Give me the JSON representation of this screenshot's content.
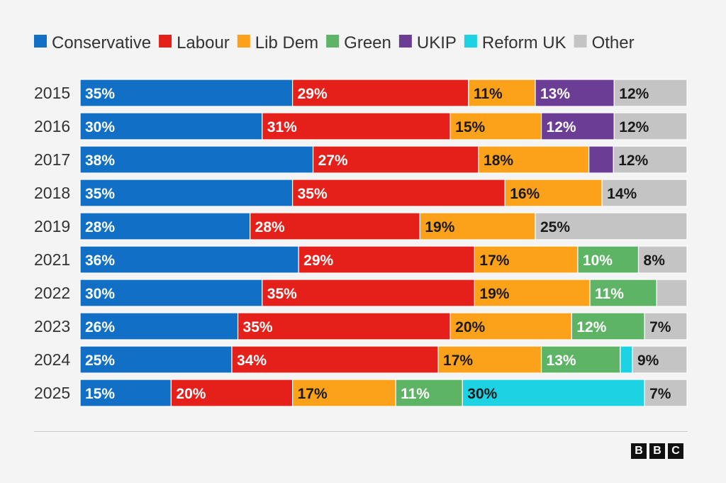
{
  "chart_data": {
    "type": "bar",
    "orientation": "horizontal",
    "stacked": true,
    "unit": "%",
    "categories": [
      "2015",
      "2016",
      "2017",
      "2018",
      "2019",
      "2021",
      "2022",
      "2023",
      "2024",
      "2025"
    ],
    "legend_position": "top-left",
    "series": [
      {
        "name": "Conservative",
        "color": "#1170c5",
        "values": [
          35,
          30,
          38,
          35,
          28,
          36,
          30,
          26,
          25,
          15
        ],
        "labels": [
          "35%",
          "30%",
          "38%",
          "35%",
          "28%",
          "36%",
          "30%",
          "26%",
          "25%",
          "15%"
        ],
        "label_color": "#ffffff"
      },
      {
        "name": "Labour",
        "color": "#e5201a",
        "values": [
          29,
          31,
          27,
          35,
          28,
          29,
          35,
          35,
          34,
          20
        ],
        "labels": [
          "29%",
          "31%",
          "27%",
          "35%",
          "28%",
          "29%",
          "35%",
          "35%",
          "34%",
          "20%"
        ],
        "label_color": "#ffffff"
      },
      {
        "name": "Lib Dem",
        "color": "#fca11a",
        "values": [
          11,
          15,
          18,
          16,
          19,
          17,
          19,
          20,
          17,
          17
        ],
        "labels": [
          "11%",
          "15%",
          "18%",
          "16%",
          "19%",
          "17%",
          "19%",
          "20%",
          "17%",
          "17%"
        ],
        "label_color": "#1a1a1a"
      },
      {
        "name": "Green",
        "color": "#5cb464",
        "values": [
          0,
          0,
          0,
          0,
          0,
          10,
          11,
          12,
          13,
          11
        ],
        "labels": [
          "",
          "",
          "",
          "",
          "",
          "10%",
          "11%",
          "12%",
          "13%",
          "11%"
        ],
        "label_color": "#ffffff"
      },
      {
        "name": "UKIP",
        "color": "#6b3d94",
        "values": [
          13,
          12,
          4,
          0,
          0,
          0,
          0,
          0,
          0,
          0
        ],
        "labels": [
          "13%",
          "12%",
          "",
          "",
          "",
          "",
          "",
          "",
          "",
          ""
        ],
        "label_color": "#ffffff"
      },
      {
        "name": "Reform UK",
        "color": "#1dd2e2",
        "values": [
          0,
          0,
          0,
          0,
          0,
          0,
          0,
          0,
          2,
          30
        ],
        "labels": [
          "",
          "",
          "",
          "",
          "",
          "",
          "",
          "",
          "",
          "30%"
        ],
        "label_color": "#1a1a1a"
      },
      {
        "name": "Other",
        "color": "#c4c4c4",
        "values": [
          12,
          12,
          12,
          14,
          25,
          8,
          5,
          7,
          9,
          7
        ],
        "labels": [
          "12%",
          "12%",
          "12%",
          "14%",
          "25%",
          "8%",
          "",
          "7%",
          "9%",
          "7%"
        ],
        "label_color": "#1a1a1a"
      }
    ]
  },
  "branding": {
    "logo_letters": [
      "B",
      "B",
      "C"
    ]
  }
}
